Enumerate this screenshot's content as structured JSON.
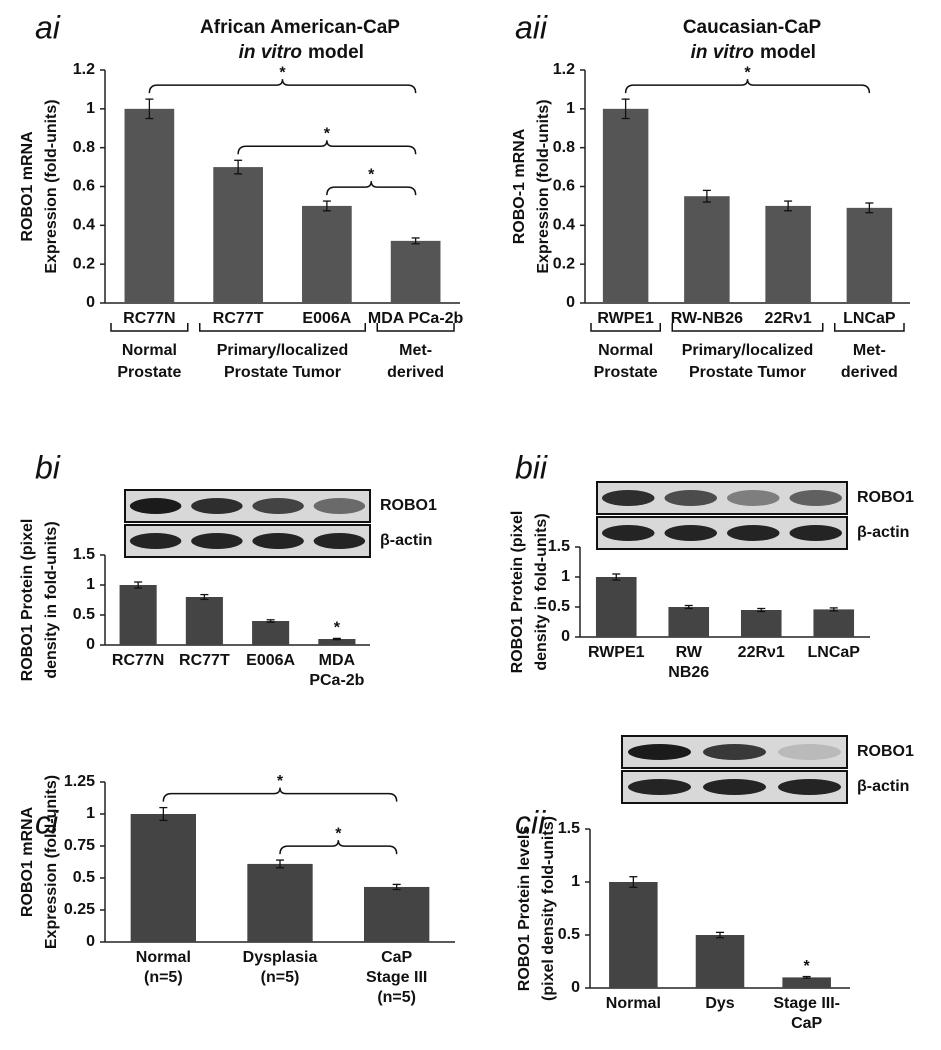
{
  "chart_data": [
    {
      "type": "bar",
      "panel": "ai",
      "title": "African American-CaP",
      "subtitle_em": "in vitro",
      "subtitle": "model",
      "ylabel": [
        "ROBO1 mRNA",
        "Expression (fold-units)"
      ],
      "categories": [
        [
          "RC77N"
        ],
        [
          "RC77T"
        ],
        [
          "E006A"
        ],
        [
          "MDA PCa-2b"
        ]
      ],
      "values": [
        1,
        0.7,
        0.5,
        0.32
      ],
      "errors": [
        0.05,
        0.035,
        0.025,
        0.015
      ],
      "color": "#555555",
      "ylim": [
        0,
        1.2
      ],
      "yticks": [
        0,
        0.2,
        0.4,
        0.6,
        0.8,
        1,
        1.2
      ],
      "groups": [
        [
          "Normal",
          "Prostate"
        ],
        [
          "Primary/localized",
          "Prostate Tumor"
        ],
        [
          "Met-",
          "derived"
        ]
      ],
      "annotations": [
        "*",
        "*",
        "*"
      ]
    },
    {
      "type": "bar",
      "panel": "aii",
      "title": "Caucasian-CaP",
      "subtitle_em": "in vitro",
      "subtitle": "model",
      "ylabel": [
        "ROBO-1 mRNA",
        "Expression (fold-units)"
      ],
      "categories": [
        [
          "RWPE1"
        ],
        [
          "RW-NB26"
        ],
        [
          "22Rν1"
        ],
        [
          "LNCaP"
        ]
      ],
      "values": [
        1,
        0.55,
        0.5,
        0.49
      ],
      "errors": [
        0.05,
        0.03,
        0.025,
        0.025
      ],
      "color": "#555555",
      "ylim": [
        0,
        1.2
      ],
      "yticks": [
        0,
        0.2,
        0.4,
        0.6,
        0.8,
        1,
        1.2
      ],
      "groups": [
        [
          "Normal",
          "Prostate"
        ],
        [
          "Primary/localized",
          "Prostate Tumor"
        ],
        [
          "Met-",
          "derived"
        ]
      ],
      "annotations": [
        "*"
      ]
    },
    {
      "type": "bar",
      "panel": "bi",
      "ylabel": [
        "ROBO1 Protein  (pixel",
        "density  in fold-units)"
      ],
      "categories": [
        [
          "RC77N"
        ],
        [
          "RC77T"
        ],
        [
          "E006A"
        ],
        [
          "MDA",
          "PCa-2b"
        ]
      ],
      "values": [
        1,
        0.8,
        0.4,
        0.1
      ],
      "errors": [
        0.05,
        0.04,
        0.02,
        0.01
      ],
      "color": "#444444",
      "ylim": [
        0,
        1.5
      ],
      "yticks": [
        0,
        0.5,
        1,
        1.5
      ],
      "blots": [
        "ROBO1",
        "β-actin"
      ],
      "annotations": [
        "*"
      ]
    },
    {
      "type": "bar",
      "panel": "bii",
      "ylabel": [
        "ROBO1 Protein  (pixel",
        "density  in fold-units)"
      ],
      "categories": [
        [
          "RWPE1"
        ],
        [
          "RW",
          "NB26"
        ],
        [
          "22Rν1"
        ],
        [
          "LNCaP"
        ]
      ],
      "values": [
        1,
        0.5,
        0.45,
        0.46
      ],
      "errors": [
        0.05,
        0.025,
        0.025,
        0.025
      ],
      "color": "#444444",
      "ylim": [
        0,
        1.5
      ],
      "yticks": [
        0,
        0.5,
        1,
        1.5
      ],
      "blots": [
        "ROBO1",
        "β-actin"
      ]
    },
    {
      "type": "bar",
      "panel": "ci",
      "ylabel": [
        "ROBO1 mRNA",
        "Expression (fold-units)"
      ],
      "categories": [
        [
          "Normal",
          "(n=5)"
        ],
        [
          "Dysplasia",
          "(n=5)"
        ],
        [
          "CaP",
          "Stage III",
          "(n=5)"
        ]
      ],
      "values": [
        1,
        0.61,
        0.43
      ],
      "errors": [
        0.05,
        0.03,
        0.02
      ],
      "color": "#444444",
      "ylim": [
        0,
        1.25
      ],
      "yticks": [
        0,
        0.25,
        0.5,
        0.75,
        1,
        1.25
      ],
      "annotations": [
        "*",
        "*"
      ]
    },
    {
      "type": "bar",
      "panel": "cii",
      "ylabel": [
        "ROBO1 Protein levels",
        "(pixel density  fold-units)"
      ],
      "categories": [
        [
          "Normal"
        ],
        [
          "Dys"
        ],
        [
          "Stage III-",
          "CaP"
        ]
      ],
      "values": [
        1,
        0.5,
        0.1
      ],
      "errors": [
        0.05,
        0.025,
        0.008
      ],
      "color": "#444444",
      "ylim": [
        0,
        1.5
      ],
      "yticks": [
        0,
        0.5,
        1,
        1.5
      ],
      "blots": [
        "ROBO1",
        "β-actin"
      ],
      "annotations": [
        "*"
      ]
    }
  ]
}
